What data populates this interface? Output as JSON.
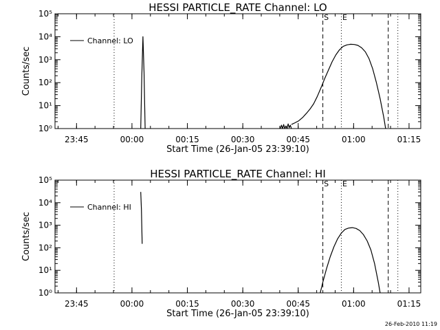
{
  "footer_timestamp": "26-Feb-2010 11:19",
  "chart_data": [
    {
      "type": "line",
      "title": "HESSI PARTICLE_RATE Channel: LO",
      "xlabel": "Start Time (26-Jan-05 23:39:10)",
      "ylabel": "Counts/sec",
      "y_scale": "log",
      "ylim": [
        1,
        100000
      ],
      "y_tick_labels": [
        "10⁰",
        "10¹",
        "10²",
        "10³",
        "10⁴",
        "10⁵"
      ],
      "x_tick_labels": [
        "23:45",
        "00:00",
        "00:15",
        "00:30",
        "00:45",
        "01:00",
        "01:15"
      ],
      "x_unit": "minutes after 23:39:10",
      "xlim": [
        0,
        99
      ],
      "x_ticks": [
        5.83,
        20.83,
        35.83,
        50.83,
        65.83,
        80.83,
        95.83
      ],
      "legend": {
        "position": "top-left",
        "entries": [
          "Channel: LO"
        ]
      },
      "markers": [
        {
          "label": "",
          "x": 16,
          "style": "dotted"
        },
        {
          "label": "S",
          "x": 72.5,
          "style": "dashed"
        },
        {
          "label": "E",
          "x": 77.5,
          "style": "dotted"
        },
        {
          "label": "",
          "x": 90.2,
          "style": "dashed"
        },
        {
          "label": "",
          "x": 92.8,
          "style": "dotted"
        }
      ],
      "series": [
        {
          "name": "Channel: LO",
          "segments": [
            {
              "x": [
                23.2,
                23.5,
                23.8,
                24.1,
                24.4
              ],
              "y": [
                1,
                200,
                10000,
                300,
                1
              ]
            },
            {
              "x": [
                61.0,
                61.3,
                61.6,
                61.9,
                62.2,
                62.5,
                62.8,
                63.1,
                63.4,
                63.7,
                64.0
              ],
              "y": [
                1,
                1.4,
                1,
                1.5,
                1,
                1.3,
                1,
                1.6,
                1.1,
                1.4,
                1
              ]
            },
            {
              "x": [
                64.0,
                65.0,
                66.0,
                67.0,
                68.0,
                69.0,
                70.0,
                71.0,
                72.0,
                73.0,
                74.0,
                75.0,
                76.0,
                77.0,
                78.0,
                79.0,
                80.0,
                81.0,
                82.0,
                83.0,
                84.0,
                85.0,
                86.0,
                87.0,
                88.0,
                89.0,
                89.5
              ],
              "y": [
                1.5,
                1.8,
                2.2,
                3,
                4.5,
                7,
                12,
                25,
                60,
                150,
                350,
                800,
                1600,
                2700,
                3800,
                4400,
                4700,
                4600,
                4200,
                3300,
                2200,
                1100,
                400,
                100,
                20,
                3,
                1
              ]
            }
          ]
        }
      ]
    },
    {
      "type": "line",
      "title": "HESSI PARTICLE_RATE Channel: HI",
      "xlabel": "Start Time (26-Jan-05 23:39:10)",
      "ylabel": "Counts/sec",
      "y_scale": "log",
      "ylim": [
        1,
        100000
      ],
      "y_tick_labels": [
        "10⁰",
        "10¹",
        "10²",
        "10³",
        "10⁴",
        "10⁵"
      ],
      "x_tick_labels": [
        "23:45",
        "00:00",
        "00:15",
        "00:30",
        "00:45",
        "01:00",
        "01:15"
      ],
      "x_unit": "minutes after 23:39:10",
      "xlim": [
        0,
        99
      ],
      "x_ticks": [
        5.83,
        20.83,
        35.83,
        50.83,
        65.83,
        80.83,
        95.83
      ],
      "legend": {
        "position": "top-left",
        "entries": [
          "Channel: HI"
        ]
      },
      "markers": [
        {
          "label": "",
          "x": 16,
          "style": "dotted"
        },
        {
          "label": "S",
          "x": 72.5,
          "style": "dashed"
        },
        {
          "label": "E",
          "x": 77.5,
          "style": "dotted"
        },
        {
          "label": "",
          "x": 90.2,
          "style": "dashed"
        },
        {
          "label": "",
          "x": 92.8,
          "style": "dotted"
        }
      ],
      "series": [
        {
          "name": "Channel: HI",
          "segments": [
            {
              "x": [
                23.2,
                23.4,
                23.6
              ],
              "y": [
                30000,
                5000,
                150
              ]
            },
            {
              "x": [
                71.8,
                72.5,
                73.5,
                74.5,
                75.5,
                76.5,
                77.5,
                78.5,
                79.5,
                80.5,
                81.5,
                82.5,
                83.5,
                84.5,
                85.5,
                86.5,
                87.5,
                88.0
              ],
              "y": [
                1,
                3,
                12,
                40,
                110,
                250,
                450,
                650,
                750,
                780,
                720,
                580,
                380,
                200,
                80,
                20,
                3,
                1
              ]
            }
          ]
        }
      ]
    }
  ]
}
